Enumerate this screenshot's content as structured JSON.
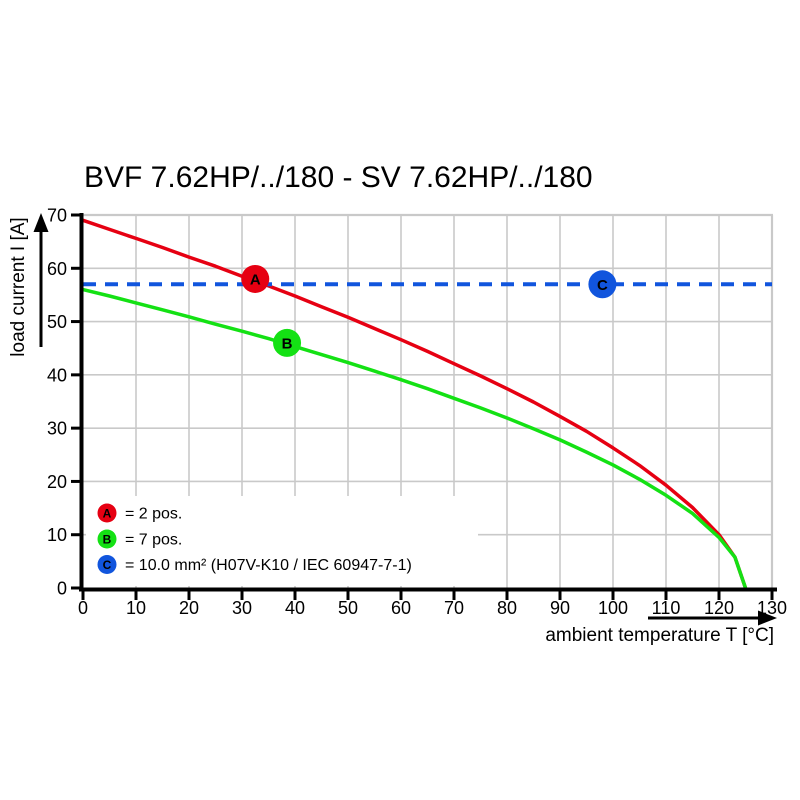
{
  "title": "BVF 7.62HP/../180 - SV 7.62HP/../180",
  "colors": {
    "background": "#ffffff",
    "grid": "#c9c9c9",
    "axis": "#000000",
    "curve_a_red": "#e60012",
    "curve_b_green": "#14e114",
    "curve_c_blue": "#1155dd"
  },
  "chart_data": {
    "type": "line",
    "title": "BVF 7.62HP/../180 - SV 7.62HP/../180",
    "xlabel": "ambient temperature T [°C]",
    "ylabel": "load current I [A]",
    "xlim": [
      0,
      130
    ],
    "ylim": [
      0,
      70
    ],
    "xticks": [
      0,
      10,
      20,
      30,
      40,
      50,
      60,
      70,
      80,
      90,
      100,
      110,
      120,
      130
    ],
    "yticks": [
      0,
      10,
      20,
      30,
      40,
      50,
      60,
      70
    ],
    "grid": true,
    "legend_position": "lower-left",
    "series": [
      {
        "name": "2 pos.",
        "marker": "A",
        "color": "#e60012",
        "style": "solid",
        "x": [
          0,
          5,
          10,
          15,
          20,
          25,
          30,
          35,
          40,
          45,
          50,
          55,
          60,
          65,
          70,
          75,
          80,
          85,
          90,
          95,
          100,
          105,
          110,
          115,
          120,
          123,
          125
        ],
        "y": [
          69,
          67.3,
          65.6,
          63.9,
          62.1,
          60.4,
          58.5,
          56.7,
          54.8,
          52.8,
          50.8,
          48.7,
          46.6,
          44.4,
          42.1,
          39.8,
          37.4,
          34.9,
          32.2,
          29.4,
          26.3,
          23.0,
          19.3,
          15.1,
          10.0,
          5.8,
          0
        ]
      },
      {
        "name": "7 pos.",
        "marker": "B",
        "color": "#14e114",
        "style": "solid",
        "x": [
          0,
          5,
          10,
          15,
          20,
          25,
          30,
          35,
          40,
          45,
          50,
          55,
          60,
          65,
          70,
          75,
          80,
          85,
          90,
          95,
          100,
          105,
          110,
          115,
          120,
          123,
          125
        ],
        "y": [
          56,
          54.8,
          53.5,
          52.2,
          50.9,
          49.5,
          48.2,
          46.8,
          45.3,
          43.8,
          42.3,
          40.7,
          39.1,
          37.4,
          35.6,
          33.8,
          31.9,
          29.9,
          27.8,
          25.5,
          23.1,
          20.4,
          17.4,
          14.0,
          9.5,
          5.8,
          0
        ]
      },
      {
        "name": "10.0 mm² (H07V-K10 / IEC 60947-7-1)",
        "marker": "C",
        "color": "#1155dd",
        "style": "dashed",
        "x": [
          0,
          130
        ],
        "y": [
          57,
          57
        ]
      }
    ],
    "point_markers": [
      {
        "label": "A",
        "color": "#e60012",
        "x": 32.5,
        "y": 58
      },
      {
        "label": "B",
        "color": "#14e114",
        "x": 38.5,
        "y": 46
      },
      {
        "label": "C",
        "color": "#1155dd",
        "x": 98,
        "y": 57
      }
    ],
    "legend": {
      "items": [
        {
          "badge": "A",
          "color": "#e60012",
          "text": "= 2 pos."
        },
        {
          "badge": "B",
          "color": "#14e114",
          "text": "= 7 pos."
        },
        {
          "badge": "C",
          "color": "#1155dd",
          "text": "= 10.0 mm² (H07V-K10 / IEC 60947-7-1)"
        }
      ]
    }
  }
}
